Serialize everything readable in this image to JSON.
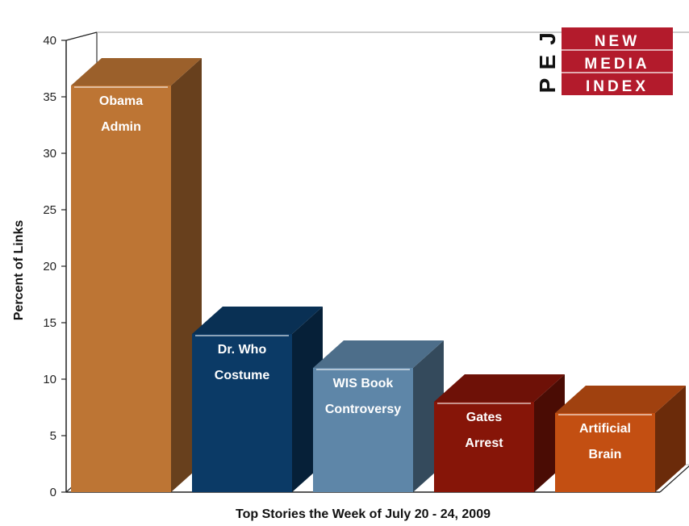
{
  "chart_data": {
    "type": "bar",
    "title": "",
    "xlabel": "Top Stories the Week of July 20 - 24, 2009",
    "ylabel": "Percent of Links",
    "ylim": [
      0,
      40
    ],
    "yticks": [
      "0",
      "5",
      "10",
      "15",
      "20",
      "25",
      "30",
      "35",
      "40"
    ],
    "grid": false,
    "categories": [
      [
        "Obama",
        "Admin"
      ],
      [
        "Dr. Who",
        "Costume"
      ],
      [
        "WIS Book",
        "Controversy"
      ],
      [
        "Gates",
        "Arrest"
      ],
      [
        "Artificial",
        "Brain"
      ]
    ],
    "values": [
      36,
      14,
      11,
      8,
      7
    ],
    "colors": [
      "#bd7534",
      "#0b3a66",
      "#5e86a8",
      "#861508",
      "#c34f12"
    ]
  },
  "logo": {
    "letters": [
      "P",
      "E",
      "J"
    ],
    "lines": [
      "NEW",
      "MEDIA",
      "INDEX"
    ],
    "color": "#b31b2c"
  }
}
